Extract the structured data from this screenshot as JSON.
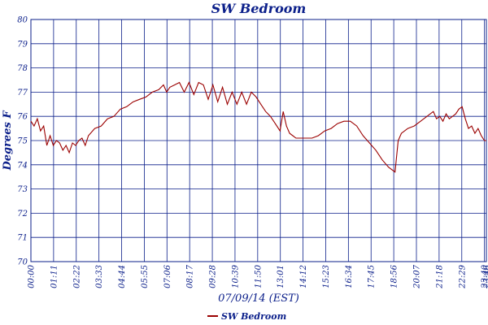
{
  "chart_data": {
    "type": "line",
    "title": "SW Bedroom",
    "xlabel": "07/09/14 (EST)",
    "ylabel": "Degrees F",
    "ylim": [
      70,
      80
    ],
    "y_ticks": [
      "70",
      "71",
      "72",
      "73",
      "74",
      "75",
      "76",
      "77",
      "78",
      "79",
      "80"
    ],
    "x_ticks": [
      "00:00",
      "01:11",
      "02:22",
      "03:33",
      "04:44",
      "05:55",
      "07:06",
      "08:17",
      "09:28",
      "10:39",
      "11:50",
      "13:01",
      "14:12",
      "15:23",
      "16:34",
      "17:45",
      "18:56",
      "20:07",
      "21:18",
      "22:29",
      "23:40",
      "23:46"
    ],
    "grid": true,
    "legend_position": "bottom",
    "series": [
      {
        "name": "SW Bedroom",
        "color": "#9b0000",
        "x": [
          "00:00",
          "00:10",
          "00:20",
          "00:30",
          "00:40",
          "00:50",
          "01:00",
          "01:10",
          "01:20",
          "01:30",
          "01:40",
          "01:50",
          "02:00",
          "02:10",
          "02:20",
          "02:30",
          "02:40",
          "02:50",
          "03:00",
          "03:20",
          "03:40",
          "04:00",
          "04:20",
          "04:40",
          "05:00",
          "05:20",
          "05:40",
          "06:00",
          "06:20",
          "06:40",
          "06:55",
          "07:05",
          "07:15",
          "07:30",
          "07:45",
          "08:00",
          "08:15",
          "08:30",
          "08:45",
          "09:00",
          "09:15",
          "09:30",
          "09:45",
          "10:00",
          "10:15",
          "10:30",
          "10:45",
          "11:00",
          "11:15",
          "11:30",
          "11:45",
          "12:00",
          "12:15",
          "12:30",
          "12:45",
          "13:00",
          "13:10",
          "13:20",
          "13:30",
          "13:40",
          "13:50",
          "14:00",
          "14:20",
          "14:40",
          "15:00",
          "15:20",
          "15:40",
          "16:00",
          "16:20",
          "16:40",
          "17:00",
          "17:20",
          "17:40",
          "18:00",
          "18:20",
          "18:40",
          "19:00",
          "19:10",
          "19:20",
          "19:30",
          "19:40",
          "20:00",
          "20:20",
          "20:40",
          "21:00",
          "21:10",
          "21:20",
          "21:30",
          "21:40",
          "21:50",
          "22:00",
          "22:10",
          "22:20",
          "22:30",
          "22:40",
          "22:50",
          "23:00",
          "23:10",
          "23:20",
          "23:30",
          "23:40",
          "23:46"
        ],
        "values": [
          75.8,
          75.6,
          75.9,
          75.4,
          75.6,
          74.8,
          75.2,
          74.8,
          75.0,
          74.9,
          74.6,
          74.8,
          74.5,
          74.9,
          74.8,
          75.0,
          75.1,
          74.8,
          75.2,
          75.5,
          75.6,
          75.9,
          76.0,
          76.3,
          76.4,
          76.6,
          76.7,
          76.8,
          77.0,
          77.1,
          77.3,
          77.0,
          77.2,
          77.3,
          77.4,
          77.0,
          77.4,
          76.9,
          77.4,
          77.3,
          76.7,
          77.3,
          76.6,
          77.2,
          76.5,
          77.0,
          76.5,
          77.0,
          76.5,
          77.0,
          76.8,
          76.5,
          76.2,
          76.0,
          75.7,
          75.4,
          76.2,
          75.6,
          75.3,
          75.2,
          75.1,
          75.1,
          75.1,
          75.1,
          75.2,
          75.4,
          75.5,
          75.7,
          75.8,
          75.8,
          75.6,
          75.2,
          74.9,
          74.6,
          74.2,
          73.9,
          73.7,
          75.0,
          75.3,
          75.4,
          75.5,
          75.6,
          75.8,
          76.0,
          76.2,
          75.9,
          76.0,
          75.8,
          76.1,
          75.9,
          76.0,
          76.1,
          76.3,
          76.4,
          75.9,
          75.5,
          75.6,
          75.3,
          75.5,
          75.2,
          75.0,
          75.0
        ]
      }
    ]
  }
}
